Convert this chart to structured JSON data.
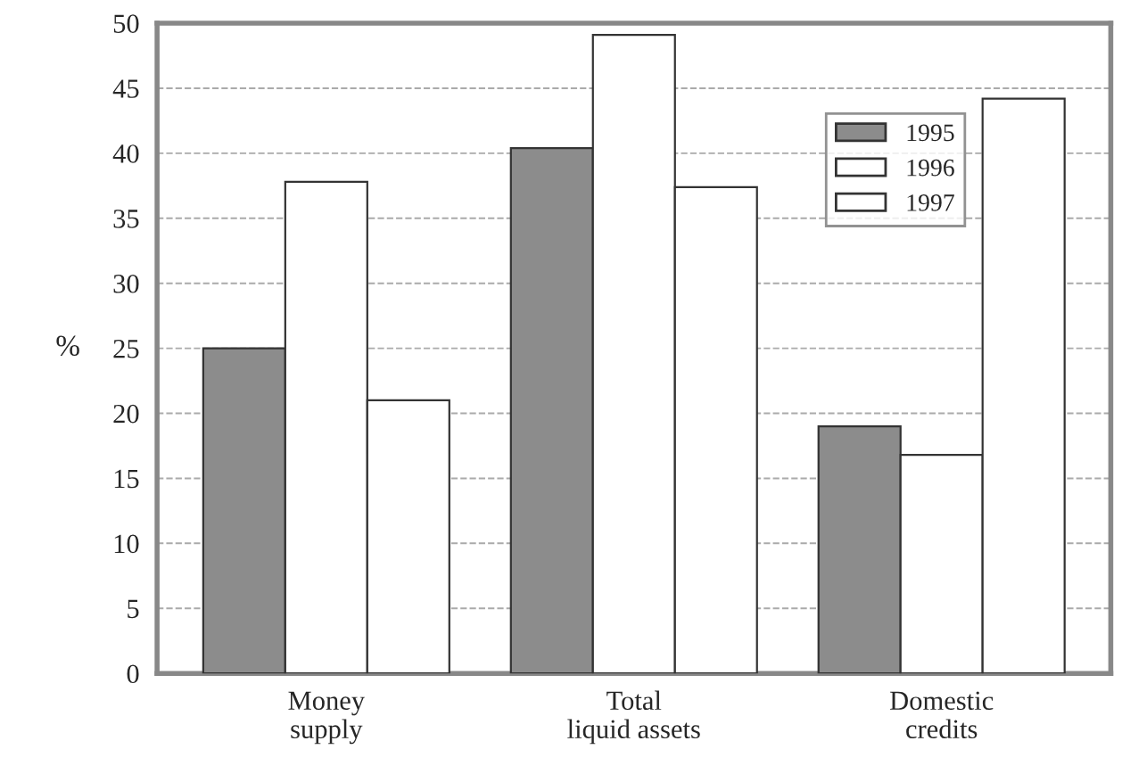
{
  "chart_data": {
    "type": "bar",
    "ylabel": "%",
    "categories": [
      "Money\nsupply",
      "Total\nliquid assets",
      "Domestic\ncredits"
    ],
    "series": [
      {
        "name": "1995",
        "color": "#8c8c8c",
        "values": [
          25,
          40.4,
          19
        ]
      },
      {
        "name": "1996",
        "color": "#ffffff",
        "values": [
          37.8,
          49.1,
          16.8
        ]
      },
      {
        "name": "1997",
        "color": "#ffffff",
        "values": [
          21,
          37.4,
          44.2
        ]
      }
    ],
    "ylim": [
      0,
      50
    ],
    "yticks": [
      0,
      5,
      10,
      15,
      20,
      25,
      30,
      35,
      40,
      45,
      50
    ],
    "grid": "y",
    "legend": "top right",
    "line_style": "dashed"
  }
}
